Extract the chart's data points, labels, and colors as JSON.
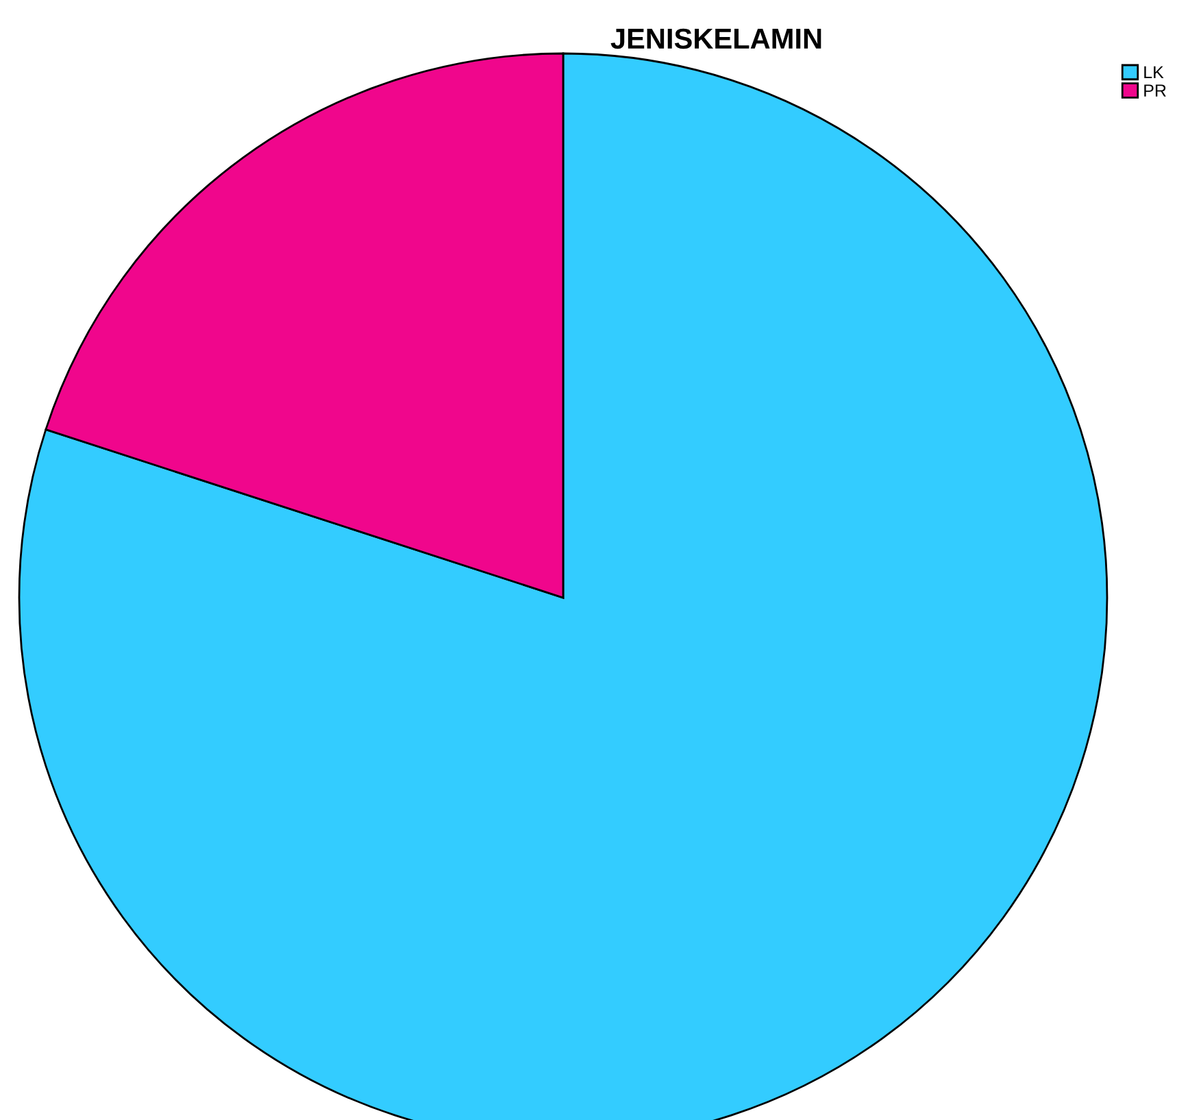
{
  "chart_data": {
    "type": "pie",
    "title": "JENISKELAMIN",
    "categories": [
      "LK",
      "PR"
    ],
    "values": [
      80,
      20
    ],
    "colors": [
      "#33ccff",
      "#f0068c"
    ],
    "legend": "top right"
  }
}
